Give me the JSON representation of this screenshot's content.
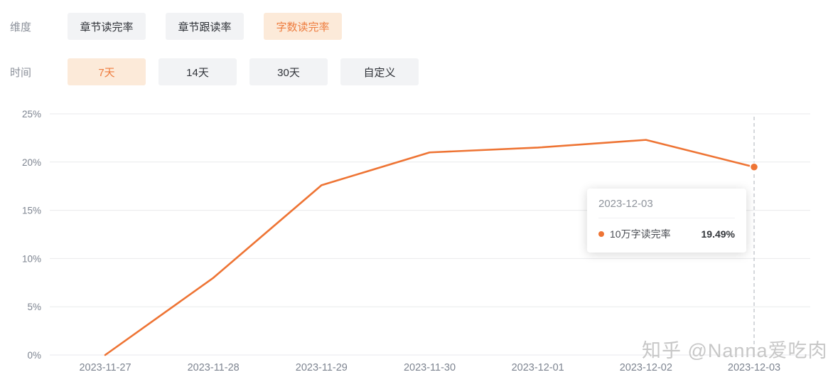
{
  "controls": {
    "dimension": {
      "label": "维度",
      "options": [
        {
          "label": "章节读完率",
          "selected": false
        },
        {
          "label": "章节跟读率",
          "selected": false
        },
        {
          "label": "字数读完率",
          "selected": true
        }
      ]
    },
    "time": {
      "label": "时间",
      "options": [
        {
          "label": "7天",
          "selected": true
        },
        {
          "label": "14天",
          "selected": false
        },
        {
          "label": "30天",
          "selected": false
        },
        {
          "label": "自定义",
          "selected": false
        }
      ]
    }
  },
  "chart_data": {
    "type": "line",
    "x": [
      "2023-11-27",
      "2023-11-28",
      "2023-11-29",
      "2023-11-30",
      "2023-12-01",
      "2023-12-02",
      "2023-12-03"
    ],
    "series": [
      {
        "name": "10万字读完率",
        "values": [
          0,
          8.0,
          17.6,
          21.0,
          21.5,
          22.3,
          19.49
        ]
      }
    ],
    "title": "",
    "xlabel": "",
    "ylabel": "",
    "ylim": [
      0,
      25
    ],
    "yticks": [
      "0%",
      "5%",
      "10%",
      "15%",
      "20%",
      "25%"
    ],
    "grid": true,
    "legend_position": "none",
    "line_color": "#ee7434",
    "highlight_index": 6
  },
  "tooltip": {
    "title": "2023-12-03",
    "series_name": "10万字读完率",
    "value": "19.49%"
  },
  "watermark": "知乎 @Nanna爱吃肉",
  "colors": {
    "accent": "#ee7434",
    "accent_bg": "#fcead9",
    "button_bg": "#f2f3f5",
    "grid": "#e9eaec",
    "axis_text": "#7d8490",
    "dashed_line": "#b9bdc4"
  }
}
